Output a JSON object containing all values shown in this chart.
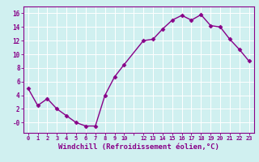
{
  "x": [
    0,
    1,
    2,
    3,
    4,
    5,
    6,
    7,
    8,
    9,
    10,
    12,
    13,
    14,
    15,
    16,
    17,
    18,
    19,
    20,
    21,
    22,
    23
  ],
  "y": [
    5,
    2.5,
    3.5,
    2,
    1,
    0,
    -0.5,
    -0.5,
    4,
    6.7,
    8.5,
    12,
    12.2,
    13.7,
    15,
    15.7,
    15,
    15.8,
    14.2,
    14,
    12.2,
    10.7,
    9
  ],
  "line_color": "#880088",
  "marker": "D",
  "markersize": 2.5,
  "linewidth": 1.0,
  "bg_color": "#d0f0f0",
  "grid_color": "#ffffff",
  "tick_color": "#880088",
  "xlabel": "Windchill (Refroidissement éolien,°C)",
  "xlabel_fontsize": 6.5,
  "ylim": [
    -1.5,
    17.0
  ],
  "xlim": [
    -0.5,
    23.5
  ],
  "font_color": "#880088"
}
